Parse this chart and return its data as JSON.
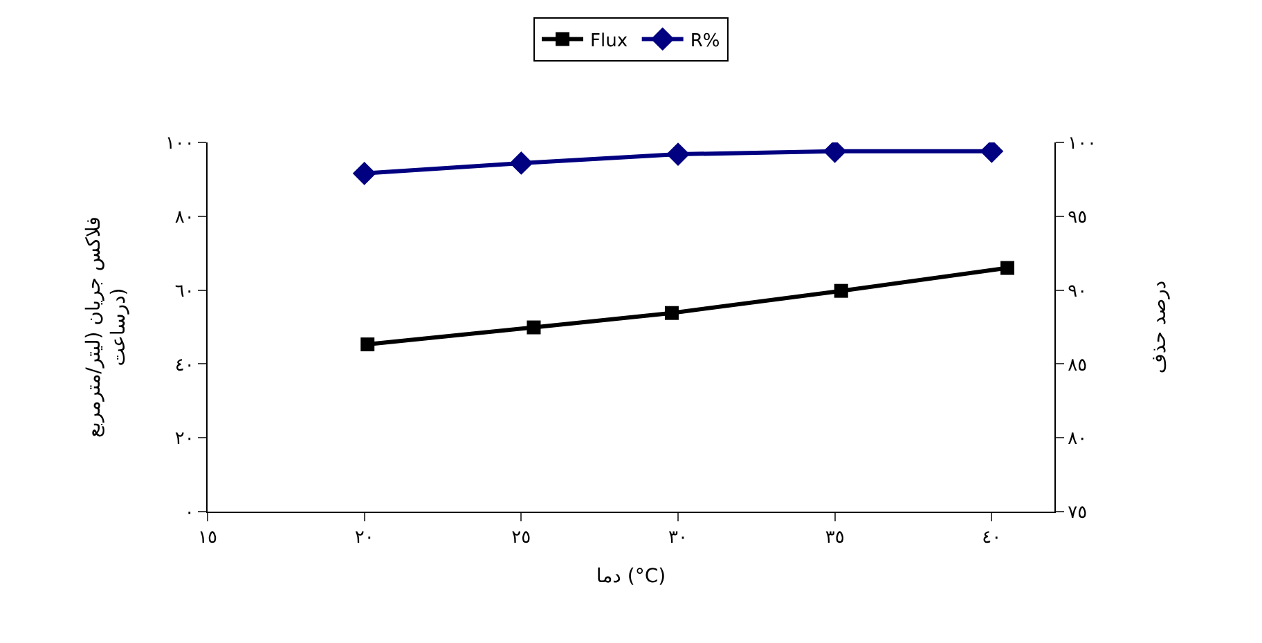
{
  "chart_data": {
    "type": "line",
    "xlabel": "دما (°C)",
    "ylabel": "فلاکس جریان (لیتر/مترمربع\nدرساعت)",
    "y2label": "درصد حذف",
    "xlim": [
      15,
      42
    ],
    "xticks": [
      {
        "value": 15,
        "label": "١٥"
      },
      {
        "value": 20,
        "label": "٢٠"
      },
      {
        "value": 25,
        "label": "٢٥"
      },
      {
        "value": 30,
        "label": "٣٠"
      },
      {
        "value": 35,
        "label": "٣٥"
      },
      {
        "value": 40,
        "label": "٤٠"
      }
    ],
    "ylim": [
      0,
      100
    ],
    "yticks": [
      {
        "value": 0,
        "label": "٠"
      },
      {
        "value": 20,
        "label": "٢٠"
      },
      {
        "value": 40,
        "label": "٤٠"
      },
      {
        "value": 60,
        "label": "٦٠"
      },
      {
        "value": 80,
        "label": "٨٠"
      },
      {
        "value": 100,
        "label": "١٠٠"
      }
    ],
    "y2lim": [
      75,
      100
    ],
    "y2ticks": [
      {
        "value": 75,
        "label": "٧٥"
      },
      {
        "value": 80,
        "label": "٨٠"
      },
      {
        "value": 85,
        "label": "٨٥"
      },
      {
        "value": 90,
        "label": "٩٠"
      },
      {
        "value": 95,
        "label": "٩٥"
      },
      {
        "value": 100,
        "label": "١٠٠"
      }
    ],
    "legend": "top",
    "series": [
      {
        "name": "Flux",
        "color": "#000000",
        "marker": "square",
        "x": [
          20.1,
          25.4,
          29.8,
          35.2,
          40.5
        ],
        "values": [
          45.3,
          49.9,
          53.8,
          59.8,
          66.0
        ]
      },
      {
        "name": "R%",
        "color": "#000080",
        "marker": "diamond",
        "axis": "y2",
        "x": [
          20,
          25,
          30,
          35,
          40
        ],
        "values": [
          97.9,
          98.6,
          99.2,
          99.4,
          99.4
        ]
      }
    ]
  }
}
